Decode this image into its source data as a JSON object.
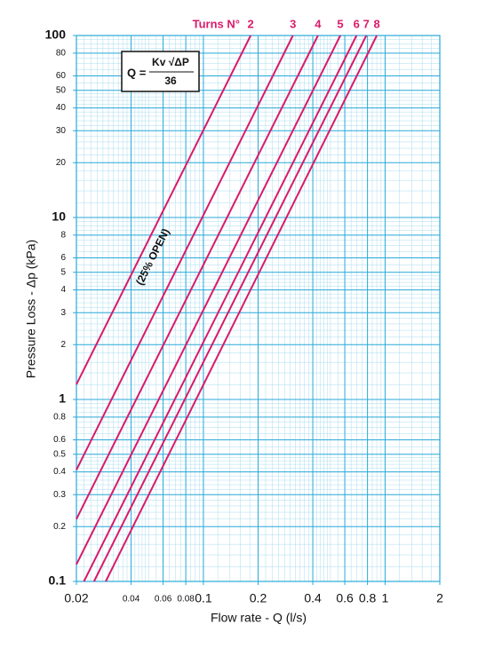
{
  "chart_data": {
    "type": "line",
    "x_log": true,
    "y_log": true,
    "grid": true,
    "xlabel": "Flow rate - Q (l/s)",
    "ylabel": "Pressure Loss  - Δp (kPa)",
    "legend_title": "Turns N°",
    "annotation": "(25% OPEN)",
    "formula": {
      "lhs": "Q =",
      "numerator": "Kv √ΔP",
      "denominator": "36"
    },
    "xlim": [
      0.02,
      2
    ],
    "ylim": [
      0.1,
      100
    ],
    "xticks": [
      0.02,
      0.04,
      0.06,
      0.08,
      0.1,
      0.2,
      0.4,
      0.6,
      0.8,
      1,
      2
    ],
    "yticks": [
      0.1,
      0.2,
      0.3,
      0.4,
      0.5,
      0.6,
      0.8,
      1,
      2,
      3,
      4,
      5,
      6,
      8,
      10,
      20,
      30,
      40,
      50,
      60,
      80,
      100
    ],
    "series": [
      {
        "name": "2",
        "color": "#d81b6a",
        "x": [
          0.02,
          0.182
        ],
        "values": [
          1.21,
          100
        ]
      },
      {
        "name": "3",
        "color": "#d81b6a",
        "x": [
          0.02,
          0.311
        ],
        "values": [
          0.41,
          100
        ]
      },
      {
        "name": "4",
        "color": "#d81b6a",
        "x": [
          0.02,
          0.427
        ],
        "values": [
          0.22,
          100
        ]
      },
      {
        "name": "5",
        "color": "#d81b6a",
        "x": [
          0.02,
          0.567
        ],
        "values": [
          0.124,
          100
        ]
      },
      {
        "name": "6",
        "color": "#d81b6a",
        "x": [
          0.022,
          0.696
        ],
        "values": [
          0.1,
          100
        ]
      },
      {
        "name": "7",
        "color": "#d81b6a",
        "x": [
          0.025,
          0.788
        ],
        "values": [
          0.1,
          100
        ]
      },
      {
        "name": "8",
        "color": "#d81b6a",
        "x": [
          0.029,
          0.9
        ],
        "values": [
          0.1,
          100
        ]
      }
    ]
  }
}
